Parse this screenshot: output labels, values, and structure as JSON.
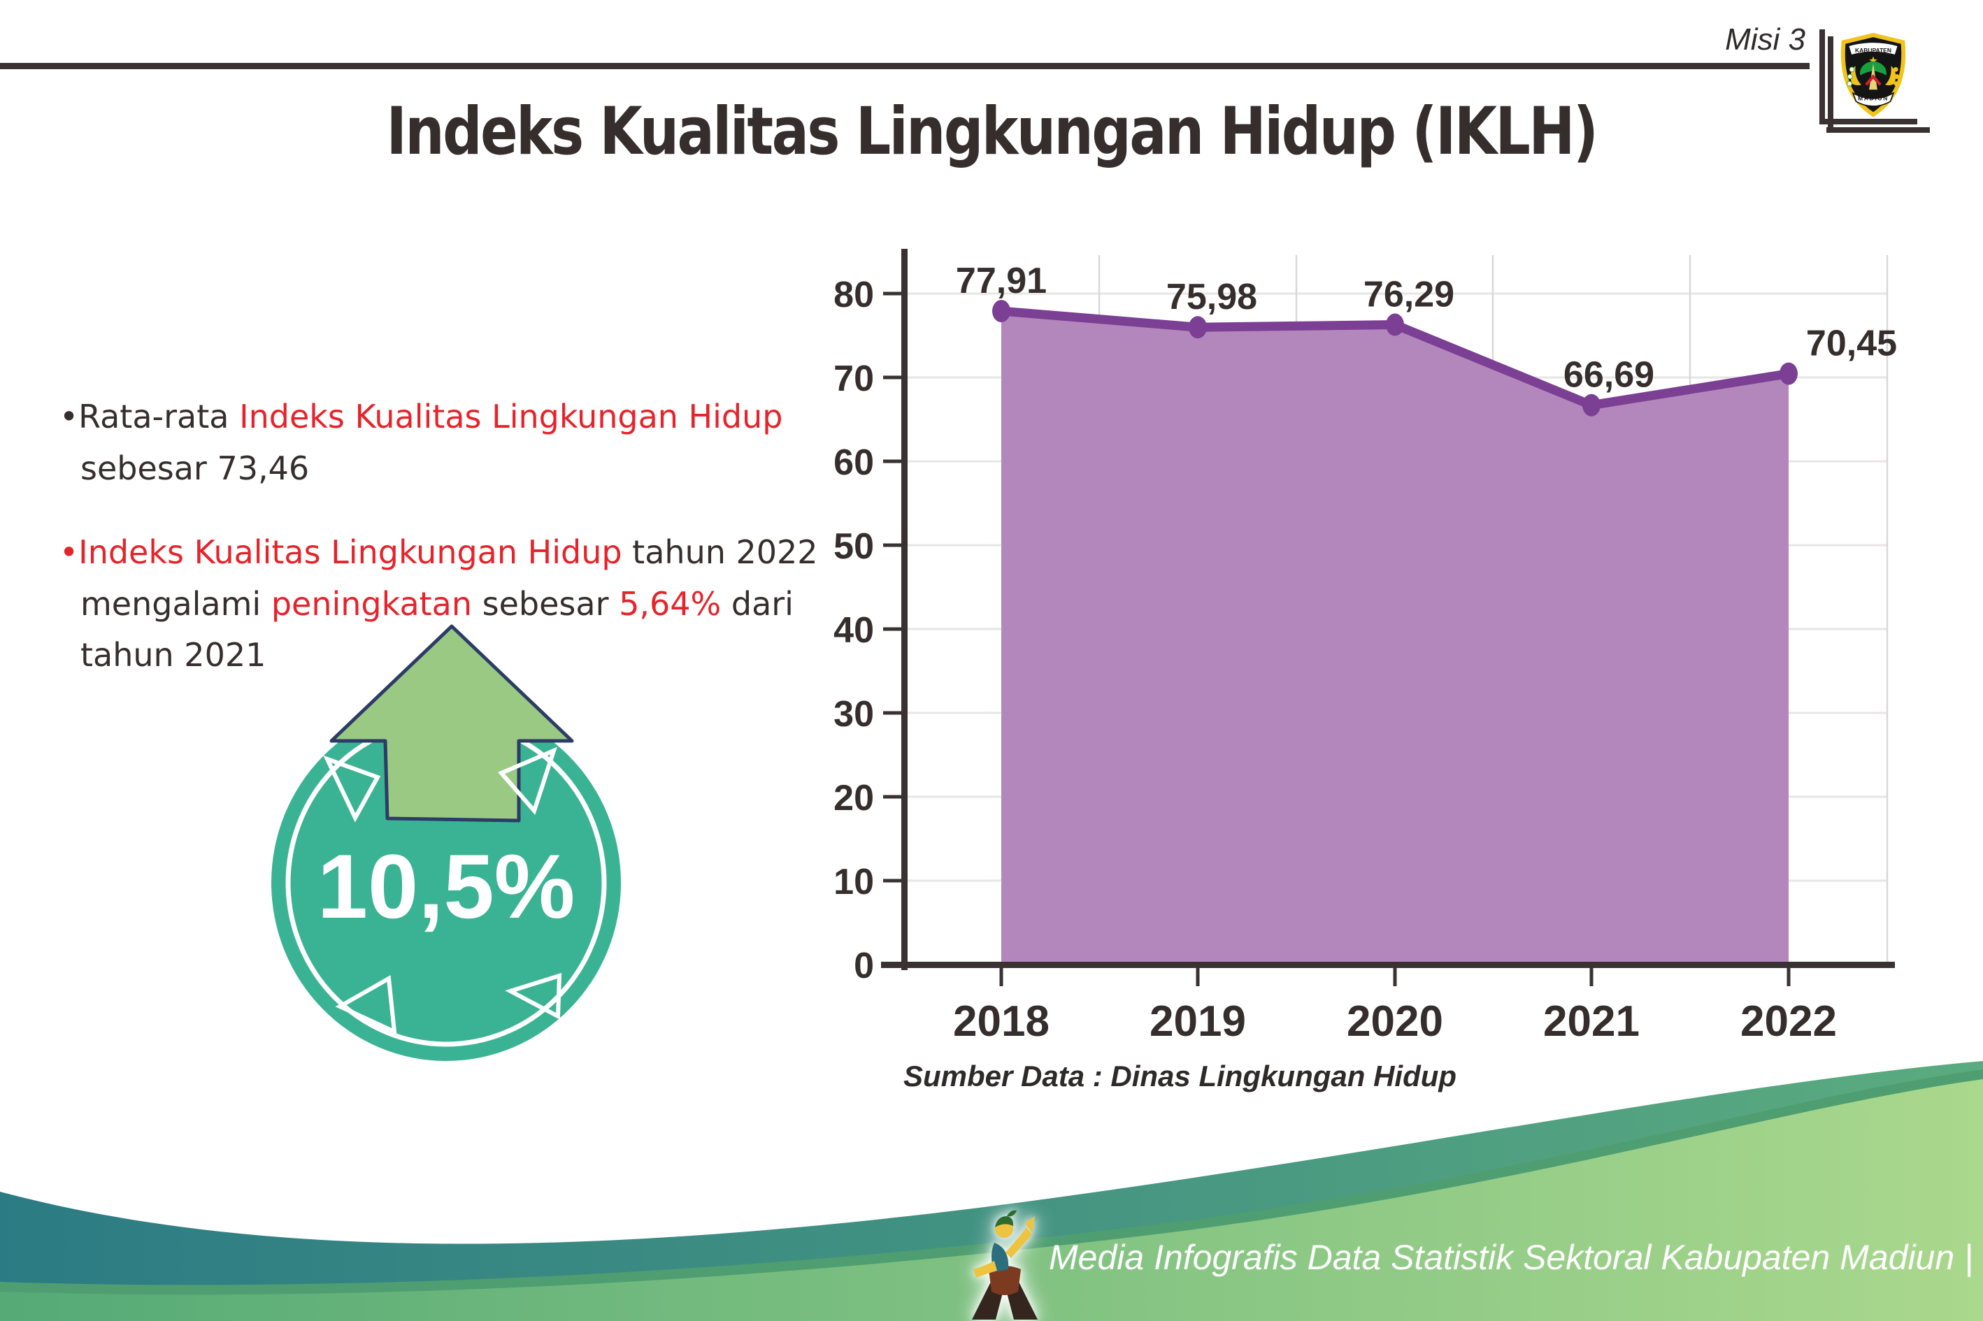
{
  "header": {
    "misi_label": "Misi 3",
    "title": "Indeks Kualitas Lingkungan Hidup (IKLH)",
    "logo": {
      "top_text": "KABUPATEN",
      "bottom_text": "MADIUN"
    }
  },
  "bullets": [
    {
      "segments": [
        {
          "text": "Rata-rata ",
          "color": "dark"
        },
        {
          "text": "Indeks Kualitas Lingkungan Hidup",
          "color": "red"
        },
        {
          "break": true
        },
        {
          "text": "sebesar 73,46",
          "color": "dark"
        }
      ]
    },
    {
      "segments": [
        {
          "text": "Indeks Kualitas Lingkungan Hidup",
          "color": "red"
        },
        {
          "text": " tahun 2022",
          "color": "dark"
        },
        {
          "break": true
        },
        {
          "text": "mengalami ",
          "color": "dark"
        },
        {
          "text": "peningkatan",
          "color": "red"
        },
        {
          "text": " sebesar ",
          "color": "dark"
        },
        {
          "text": "5,64%",
          "color": "red"
        },
        {
          "text": " dari",
          "color": "dark"
        },
        {
          "break": true
        },
        {
          "text": "tahun 2021",
          "color": "dark"
        }
      ]
    }
  ],
  "badge": {
    "value": "10,5%",
    "direction": "up"
  },
  "chart_data": {
    "type": "area",
    "categories": [
      "2018",
      "2019",
      "2020",
      "2021",
      "2022"
    ],
    "series": [
      {
        "name": "IKLH",
        "values": [
          77.91,
          75.98,
          76.29,
          66.69,
          70.45
        ],
        "labels": [
          "77,91",
          "75,98",
          "76,29",
          "66,69",
          "70,45"
        ]
      }
    ],
    "ylim": [
      0,
      80
    ],
    "y_ticks": [
      0,
      10,
      20,
      30,
      40,
      50,
      60,
      70,
      80
    ],
    "grid": true,
    "legend": false,
    "source_note": "Sumber Data : Dinas Lingkungan Hidup"
  },
  "footer": {
    "credit": "Media Infografis Data Statistik Sektoral Kabupaten Madiun |"
  },
  "colors": {
    "text-dark": "#352e2d",
    "text-red": "#e6232b",
    "chart-line": "#7b3f94",
    "chart-fill": "#b487bc",
    "axis": "#3a3132",
    "grid-h": "#e7e5e5",
    "grid-v": "#d9d7d7",
    "badge-teal": "#3ab394",
    "arrow-green": "#9ac983",
    "arrow-outline": "#2c3c66",
    "wave-teal-start": "#2b7b84",
    "wave-teal-end": "#5bab80",
    "wave-green-start": "#55aa76",
    "wave-green-end": "#aad88d",
    "wave-rim": "#4f9e71",
    "footer-text": "#ffffff"
  }
}
